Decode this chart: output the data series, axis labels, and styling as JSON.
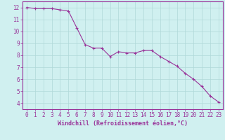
{
  "x": [
    0,
    1,
    2,
    3,
    4,
    5,
    6,
    7,
    8,
    9,
    10,
    11,
    12,
    13,
    14,
    15,
    16,
    17,
    18,
    19,
    20,
    21,
    22,
    23
  ],
  "y": [
    12.0,
    11.9,
    11.9,
    11.9,
    11.8,
    11.7,
    10.3,
    8.9,
    8.6,
    8.6,
    7.9,
    8.3,
    8.2,
    8.2,
    8.4,
    8.4,
    7.9,
    7.5,
    7.1,
    6.5,
    6.0,
    5.4,
    4.6,
    4.1
  ],
  "line_color": "#993399",
  "marker": "+",
  "bg_color": "#d0f0f0",
  "grid_color": "#b0d8d8",
  "axis_color": "#993399",
  "xlabel": "Windchill (Refroidissement éolien,°C)",
  "xlim": [
    -0.5,
    23.5
  ],
  "ylim": [
    3.5,
    12.5
  ],
  "yticks": [
    4,
    5,
    6,
    7,
    8,
    9,
    10,
    11,
    12
  ],
  "xticks": [
    0,
    1,
    2,
    3,
    4,
    5,
    6,
    7,
    8,
    9,
    10,
    11,
    12,
    13,
    14,
    15,
    16,
    17,
    18,
    19,
    20,
    21,
    22,
    23
  ],
  "fontsize_label": 6,
  "fontsize_tick": 5.5
}
